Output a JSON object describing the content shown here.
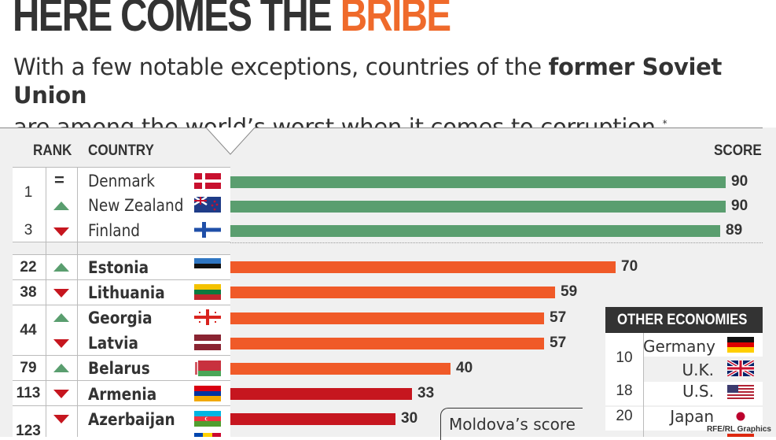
{
  "header": {
    "title_main": "HERE COMES THE ",
    "title_highlight": "BRIBE",
    "subtitle_part1": "With a few notable exceptions, countries of the ",
    "subtitle_bold": "former Soviet Union",
    "subtitle_part2": "are among the world’s worst when it comes to corruption.",
    "subtitle_mark": "*"
  },
  "columns": {
    "rank": "RANK",
    "country": "COUNTRY",
    "score": "SCORE"
  },
  "chart_data": {
    "type": "bar",
    "orientation": "horizontal",
    "xlim": [
      0,
      100
    ],
    "rows": [
      {
        "rank": "1",
        "trend": "same",
        "country": "Denmark",
        "score": 90,
        "group": "top",
        "color": "#5a9e6f"
      },
      {
        "rank": "",
        "trend": "up",
        "country": "New Zealand",
        "score": 90,
        "group": "top",
        "color": "#5a9e6f"
      },
      {
        "rank": "3",
        "trend": "down",
        "country": "Finland",
        "score": 89,
        "group": "top",
        "color": "#5a9e6f"
      },
      {
        "rank": "22",
        "trend": "up",
        "country": "Estonia",
        "score": 70,
        "group": "soviet",
        "color": "#f05a28"
      },
      {
        "rank": "38",
        "trend": "down",
        "country": "Lithuania",
        "score": 59,
        "group": "soviet",
        "color": "#f05a28"
      },
      {
        "rank": "44",
        "trend": "up",
        "country": "Georgia",
        "score": 57,
        "group": "soviet",
        "color": "#f05a28"
      },
      {
        "rank": "",
        "trend": "down",
        "country": "Latvia",
        "score": 57,
        "group": "soviet",
        "color": "#f05a28"
      },
      {
        "rank": "79",
        "trend": "up",
        "country": "Belarus",
        "score": 40,
        "group": "soviet",
        "color": "#f05a28"
      },
      {
        "rank": "113",
        "trend": "down",
        "country": "Armenia",
        "score": 33,
        "group": "soviet",
        "color": "#c6161f"
      },
      {
        "rank": "123",
        "trend": "down",
        "country": "Azerbaijan",
        "score": 30,
        "group": "soviet",
        "color": "#c6161f"
      }
    ]
  },
  "other_economies": {
    "title": "OTHER ECONOMIES",
    "items": [
      {
        "rank": "10",
        "country": "Germany"
      },
      {
        "rank": "",
        "country": "U.K."
      },
      {
        "rank": "18",
        "country": "U.S."
      },
      {
        "rank": "20",
        "country": "Japan"
      }
    ]
  },
  "callout": "Moldova’s score",
  "credit": "RFE/RL Graphics",
  "colors": {
    "top": "#5a9e6f",
    "mid": "#f05a28",
    "low": "#c6161f",
    "title_accent": "#ef6a2b"
  }
}
